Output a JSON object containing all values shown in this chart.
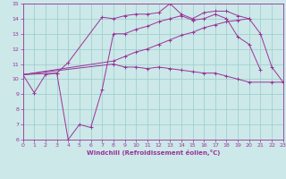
{
  "title": "",
  "xlabel": "Windchill (Refroidissement éolien,°C)",
  "xlim": [
    0,
    23
  ],
  "ylim": [
    6,
    15
  ],
  "xticks": [
    0,
    1,
    2,
    3,
    4,
    5,
    6,
    7,
    8,
    9,
    10,
    11,
    12,
    13,
    14,
    15,
    16,
    17,
    18,
    19,
    20,
    21,
    22,
    23
  ],
  "yticks": [
    6,
    7,
    8,
    9,
    10,
    11,
    12,
    13,
    14,
    15
  ],
  "bg_color": "#cce8e8",
  "line_color": "#993399",
  "grid_color": "#99cccc",
  "curves": [
    {
      "x": [
        0,
        1,
        2,
        3,
        4,
        5,
        6,
        7,
        8,
        9,
        10,
        11,
        12,
        13,
        14,
        15,
        16,
        17,
        18,
        19,
        20,
        21
      ],
      "y": [
        10.3,
        9.1,
        10.3,
        10.4,
        6.0,
        7.0,
        6.8,
        9.3,
        13.0,
        13.0,
        13.3,
        13.5,
        13.8,
        14.0,
        14.2,
        13.9,
        14.0,
        14.3,
        14.0,
        12.8,
        12.3,
        10.6
      ]
    },
    {
      "x": [
        0,
        3,
        4,
        7,
        8,
        9,
        10,
        11,
        12,
        13,
        14,
        15,
        16,
        17,
        18,
        19,
        20
      ],
      "y": [
        10.3,
        10.4,
        11.1,
        14.1,
        14.0,
        14.2,
        14.3,
        14.3,
        14.4,
        15.0,
        14.3,
        14.0,
        14.4,
        14.5,
        14.5,
        14.2,
        14.0
      ]
    },
    {
      "x": [
        0,
        8,
        9,
        10,
        11,
        12,
        13,
        14,
        15,
        16,
        17,
        18,
        19,
        20,
        21,
        22,
        23
      ],
      "y": [
        10.3,
        11.2,
        11.5,
        11.8,
        12.0,
        12.3,
        12.6,
        12.9,
        13.1,
        13.4,
        13.6,
        13.8,
        13.9,
        14.0,
        13.0,
        10.8,
        9.8
      ]
    },
    {
      "x": [
        0,
        8,
        9,
        10,
        11,
        12,
        13,
        14,
        15,
        16,
        17,
        18,
        19,
        20,
        22,
        23
      ],
      "y": [
        10.3,
        11.0,
        10.8,
        10.8,
        10.7,
        10.8,
        10.7,
        10.6,
        10.5,
        10.4,
        10.4,
        10.2,
        10.0,
        9.8,
        9.8,
        9.8
      ]
    }
  ]
}
